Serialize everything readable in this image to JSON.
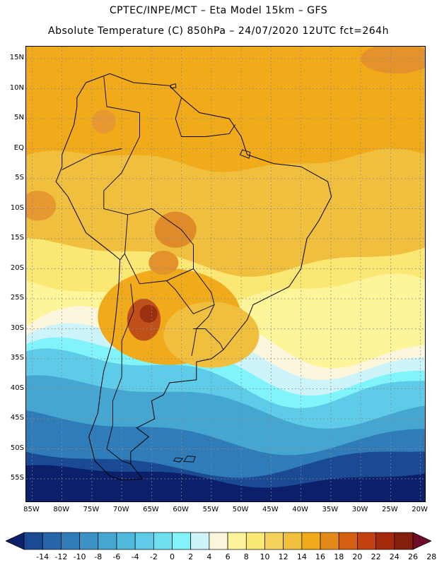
{
  "header": {
    "title_line1": "CPTEC/INPE/MCT –  Eta Model 15km – GFS",
    "title_line2": "Absolute Temperature (C) 850hPa – 24/07/2020 12UTC fct=264h"
  },
  "map": {
    "lon_range": [
      -86,
      -19
    ],
    "lat_range": [
      -59,
      17
    ],
    "lat_ticks": [
      {
        "value": 15,
        "label": "15N"
      },
      {
        "value": 10,
        "label": "10N"
      },
      {
        "value": 5,
        "label": "5N"
      },
      {
        "value": 0,
        "label": "EQ"
      },
      {
        "value": -5,
        "label": "5S"
      },
      {
        "value": -10,
        "label": "10S"
      },
      {
        "value": -15,
        "label": "15S"
      },
      {
        "value": -20,
        "label": "20S"
      },
      {
        "value": -25,
        "label": "25S"
      },
      {
        "value": -30,
        "label": "30S"
      },
      {
        "value": -35,
        "label": "35S"
      },
      {
        "value": -40,
        "label": "40S"
      },
      {
        "value": -45,
        "label": "45S"
      },
      {
        "value": -50,
        "label": "50S"
      },
      {
        "value": -55,
        "label": "55S"
      }
    ],
    "lon_ticks": [
      {
        "value": -85,
        "label": "85W"
      },
      {
        "value": -80,
        "label": "80W"
      },
      {
        "value": -75,
        "label": "75W"
      },
      {
        "value": -70,
        "label": "70W"
      },
      {
        "value": -65,
        "label": "65W"
      },
      {
        "value": -60,
        "label": "60W"
      },
      {
        "value": -55,
        "label": "55W"
      },
      {
        "value": -50,
        "label": "50W"
      },
      {
        "value": -45,
        "label": "45W"
      },
      {
        "value": -40,
        "label": "40W"
      },
      {
        "value": -35,
        "label": "35W"
      },
      {
        "value": -30,
        "label": "30W"
      },
      {
        "value": -25,
        "label": "25W"
      },
      {
        "value": -20,
        "label": "20W"
      }
    ],
    "continent_outline": [
      [
        -77.5,
        8.5
      ],
      [
        -76.0,
        11.0
      ],
      [
        -72.0,
        12.5
      ],
      [
        -68.0,
        11.0
      ],
      [
        -62.0,
        10.5
      ],
      [
        -60.0,
        8.5
      ],
      [
        -57.0,
        6.0
      ],
      [
        -52.0,
        5.0
      ],
      [
        -50.0,
        2.0
      ],
      [
        -49.0,
        -1.0
      ],
      [
        -44.5,
        -2.5
      ],
      [
        -40.0,
        -3.0
      ],
      [
        -35.5,
        -5.5
      ],
      [
        -34.9,
        -8.0
      ],
      [
        -37.0,
        -12.0
      ],
      [
        -39.0,
        -15.0
      ],
      [
        -40.0,
        -20.0
      ],
      [
        -42.0,
        -23.0
      ],
      [
        -48.0,
        -26.0
      ],
      [
        -49.0,
        -28.5
      ],
      [
        -51.0,
        -31.0
      ],
      [
        -53.0,
        -33.5
      ],
      [
        -55.0,
        -35.0
      ],
      [
        -57.5,
        -35.5
      ],
      [
        -57.5,
        -38.5
      ],
      [
        -62.0,
        -39.0
      ],
      [
        -63.0,
        -41.0
      ],
      [
        -65.0,
        -42.0
      ],
      [
        -64.5,
        -45.0
      ],
      [
        -67.5,
        -46.5
      ],
      [
        -65.5,
        -48.0
      ],
      [
        -68.5,
        -50.5
      ],
      [
        -68.5,
        -52.5
      ],
      [
        -66.5,
        -55.0
      ],
      [
        -70.0,
        -55.2
      ],
      [
        -72.0,
        -54.5
      ],
      [
        -74.5,
        -52.0
      ],
      [
        -75.5,
        -48.0
      ],
      [
        -74.0,
        -44.0
      ],
      [
        -73.5,
        -40.0
      ],
      [
        -73.0,
        -37.0
      ],
      [
        -71.5,
        -32.0
      ],
      [
        -71.0,
        -28.0
      ],
      [
        -70.5,
        -23.0
      ],
      [
        -70.3,
        -18.5
      ],
      [
        -71.5,
        -17.5
      ],
      [
        -76.0,
        -14.0
      ],
      [
        -79.0,
        -8.0
      ],
      [
        -81.0,
        -5.5
      ],
      [
        -80.0,
        -3.0
      ],
      [
        -80.0,
        -1.0
      ],
      [
        -79.0,
        1.5
      ],
      [
        -78.0,
        4.0
      ],
      [
        -77.5,
        7.0
      ]
    ],
    "country_borders": [
      [
        [
          -73.0,
          12.0
        ],
        [
          -72.5,
          7.0
        ],
        [
          -67.0,
          6.0
        ],
        [
          -67.0,
          2.0
        ],
        [
          -70.0,
          -4.0
        ]
      ],
      [
        [
          -60.0,
          8.5
        ],
        [
          -61.0,
          5.0
        ],
        [
          -60.0,
          2.0
        ],
        [
          -56.0,
          2.0
        ],
        [
          -52.0,
          2.5
        ],
        [
          -51.0,
          4.0
        ]
      ],
      [
        [
          -70.0,
          -4.0
        ],
        [
          -73.0,
          -7.0
        ],
        [
          -73.0,
          -10.0
        ],
        [
          -69.0,
          -11.0
        ],
        [
          -69.5,
          -17.5
        ],
        [
          -70.3,
          -18.5
        ]
      ],
      [
        [
          -80.0,
          -3.5
        ],
        [
          -75.0,
          -1.0
        ],
        [
          -70.0,
          0.0
        ]
      ],
      [
        [
          -69.0,
          -11.0
        ],
        [
          -65.0,
          -10.0
        ],
        [
          -60.0,
          -13.5
        ],
        [
          -58.0,
          -16.0
        ],
        [
          -58.0,
          -20.0
        ],
        [
          -62.5,
          -22.0
        ],
        [
          -67.0,
          -22.5
        ],
        [
          -69.5,
          -17.5
        ]
      ],
      [
        [
          -62.5,
          -22.0
        ],
        [
          -58.0,
          -20.0
        ],
        [
          -55.0,
          -24.0
        ],
        [
          -54.5,
          -26.0
        ],
        [
          -58.0,
          -27.5
        ],
        [
          -61.0,
          -23.5
        ],
        [
          -62.5,
          -22.0
        ]
      ],
      [
        [
          -68.5,
          -22.5
        ],
        [
          -68.0,
          -27.0
        ],
        [
          -70.0,
          -32.0
        ],
        [
          -70.0,
          -38.0
        ],
        [
          -71.5,
          -42.0
        ],
        [
          -71.5,
          -46.0
        ],
        [
          -72.5,
          -50.0
        ],
        [
          -70.0,
          -52.0
        ],
        [
          -68.5,
          -52.5
        ]
      ],
      [
        [
          -58.0,
          -30.0
        ],
        [
          -56.0,
          -30.0
        ],
        [
          -53.5,
          -32.5
        ],
        [
          -53.0,
          -33.5
        ]
      ],
      [
        [
          -54.5,
          -26.0
        ],
        [
          -55.5,
          -28.0
        ],
        [
          -57.5,
          -30.0
        ],
        [
          -58.0,
          -33.0
        ],
        [
          -58.3,
          -34.5
        ]
      ]
    ],
    "islands": [
      [
        [
          -59.0,
          -51.2
        ],
        [
          -57.7,
          -51.3
        ],
        [
          -58.0,
          -52.2
        ],
        [
          -59.6,
          -52.1
        ]
      ],
      [
        [
          -61.0,
          -51.5
        ],
        [
          -59.8,
          -51.6
        ],
        [
          -60.3,
          -52.2
        ],
        [
          -61.3,
          -52.0
        ]
      ],
      [
        [
          -61.8,
          10.6
        ],
        [
          -61.0,
          10.8
        ],
        [
          -60.9,
          10.2
        ],
        [
          -61.8,
          10.1
        ]
      ],
      [
        [
          -49.8,
          -0.2
        ],
        [
          -48.5,
          -0.6
        ],
        [
          -48.7,
          -1.6
        ],
        [
          -50.2,
          -1.0
        ]
      ]
    ],
    "hotspots": [
      {
        "lon": -66.3,
        "lat": -28.5,
        "rx": 2.8,
        "ry": 3.5,
        "color": "#c0501a"
      },
      {
        "lon": -65.5,
        "lat": -27.5,
        "rx": 1.5,
        "ry": 1.5,
        "color": "#9a3010"
      },
      {
        "lon": -61.0,
        "lat": -13.5,
        "rx": 3.5,
        "ry": 3.0,
        "color": "#e08b2a"
      },
      {
        "lon": -84.0,
        "lat": -9.5,
        "rx": 3.0,
        "ry": 2.5,
        "color": "#e79830"
      },
      {
        "lon": -73.0,
        "lat": 4.5,
        "rx": 2.0,
        "ry": 2.0,
        "color": "#e79830"
      },
      {
        "lon": -24.0,
        "lat": 15.0,
        "rx": 6.0,
        "ry": 2.5,
        "color": "#e4922c"
      },
      {
        "lon": -63.0,
        "lat": -19.0,
        "rx": 2.5,
        "ry": 2.0,
        "color": "#e4922c"
      }
    ]
  },
  "legend": {
    "levels": [
      "-14",
      "-12",
      "-10",
      "-8",
      "-6",
      "-4",
      "-2",
      "0",
      "2",
      "4",
      "6",
      "8",
      "10",
      "12",
      "14",
      "16",
      "18",
      "20",
      "22",
      "24",
      "26",
      "28"
    ],
    "colors": [
      "#0b1f6a",
      "#1a4a94",
      "#2565a8",
      "#2f7cb8",
      "#3a92c6",
      "#45a6d2",
      "#4fb9dd",
      "#5ecbe8",
      "#6edff0",
      "#80f4fa",
      "#cdf3fb",
      "#fcf6dc",
      "#fef59b",
      "#fbe773",
      "#f6d25a",
      "#f1bf3e",
      "#f0aa1a",
      "#e48a1a",
      "#d45f10",
      "#c2410c",
      "#a52a0c",
      "#85200e",
      "#6e0c28"
    ]
  },
  "palette": {
    "tropics": "#f0aa1a",
    "warm_ocean": "#f1bf3e",
    "mild": "#fbe773",
    "pale": "#fef59b",
    "cream": "#fcf6dc",
    "light_cyan": "#cdf3fb",
    "cyan": "#80f4fa",
    "aqua": "#5ecbe8",
    "sky": "#45a6d2",
    "blue": "#2f7cb8",
    "deep_blue": "#1a4a94",
    "navy": "#0b1f6a"
  }
}
